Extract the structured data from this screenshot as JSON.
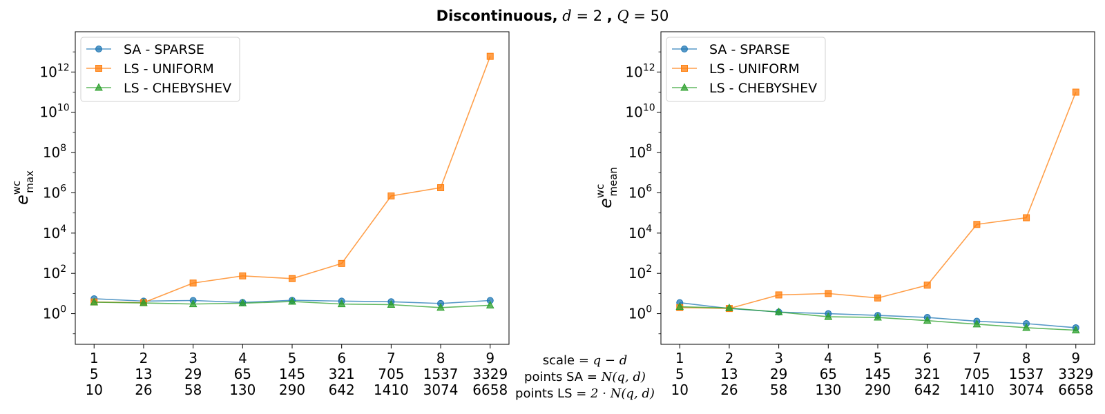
{
  "figure": {
    "title_parts": {
      "bold": "Discontinuous,",
      "d_var": "d",
      "d_eq": " = 2",
      "comma": ",",
      "q_var": "Q",
      "q_eq": " = 50"
    },
    "middle_labels": {
      "scale": {
        "prefix": "scale",
        "eq": " = ",
        "expr": "q − d"
      },
      "points_sa": {
        "prefix": "points SA",
        "eq": " = ",
        "expr": "N(q, d)"
      },
      "points_ls": {
        "prefix": "points LS",
        "eq": " = ",
        "expr": "2 · N(q, d)"
      }
    }
  },
  "chart_data": [
    {
      "type": "line",
      "ylabel": {
        "base": "e",
        "sup": "wc",
        "sub": "max"
      },
      "yscale": "log",
      "ylim": [
        0.03,
        100000000000000.0
      ],
      "yticks": [
        {
          "value": 1,
          "base": "10",
          "exp": "0"
        },
        {
          "value": 100,
          "base": "10",
          "exp": "2"
        },
        {
          "value": 10000,
          "base": "10",
          "exp": "4"
        },
        {
          "value": 1000000,
          "base": "10",
          "exp": "6"
        },
        {
          "value": 100000000,
          "base": "10",
          "exp": "8"
        },
        {
          "value": 10000000000,
          "base": "10",
          "exp": "10"
        },
        {
          "value": 1000000000000,
          "base": "10",
          "exp": "12"
        }
      ],
      "x": [
        1,
        2,
        3,
        4,
        5,
        6,
        7,
        8,
        9
      ],
      "xlim": [
        0.62,
        9.38
      ],
      "xticklabels_row2": [
        "5",
        "13",
        "29",
        "65",
        "145",
        "321",
        "705",
        "1537",
        "3329"
      ],
      "xticklabels_row3": [
        "10",
        "26",
        "58",
        "130",
        "290",
        "642",
        "1410",
        "3074",
        "6658"
      ],
      "legend_position": "upper-left",
      "grid": false,
      "series": [
        {
          "name": "SA - SPARSE",
          "marker": "circle",
          "color": "#1f77b4",
          "values": [
            5.5,
            4.2,
            4.5,
            3.6,
            4.6,
            4.2,
            3.9,
            3.2,
            4.5
          ]
        },
        {
          "name": "LS - UNIFORM",
          "marker": "square",
          "color": "#ff7f0e",
          "values": [
            3.8,
            3.5,
            33,
            75,
            55,
            310,
            700000,
            1800000,
            6000000000000
          ]
        },
        {
          "name": "LS - CHEBYSHEV",
          "marker": "triangle",
          "color": "#2ca02c",
          "values": [
            3.7,
            3.4,
            3.0,
            3.3,
            4.0,
            3.0,
            2.8,
            2.0,
            2.6
          ]
        }
      ]
    },
    {
      "type": "line",
      "ylabel": {
        "base": "e",
        "sup": "wc",
        "sub": "mean"
      },
      "yscale": "log",
      "ylim": [
        0.03,
        100000000000000.0
      ],
      "yticks": [
        {
          "value": 1,
          "base": "10",
          "exp": "0"
        },
        {
          "value": 100,
          "base": "10",
          "exp": "2"
        },
        {
          "value": 10000,
          "base": "10",
          "exp": "4"
        },
        {
          "value": 1000000,
          "base": "10",
          "exp": "6"
        },
        {
          "value": 100000000,
          "base": "10",
          "exp": "8"
        },
        {
          "value": 10000000000,
          "base": "10",
          "exp": "10"
        },
        {
          "value": 1000000000000,
          "base": "10",
          "exp": "12"
        }
      ],
      "x": [
        1,
        2,
        3,
        4,
        5,
        6,
        7,
        8,
        9
      ],
      "xlim": [
        0.62,
        9.38
      ],
      "xticklabels_row2": [
        "5",
        "13",
        "29",
        "65",
        "145",
        "321",
        "705",
        "1537",
        "3329"
      ],
      "xticklabels_row3": [
        "10",
        "26",
        "58",
        "130",
        "290",
        "642",
        "1410",
        "3074",
        "6658"
      ],
      "legend_position": "upper-left",
      "grid": false,
      "series": [
        {
          "name": "SA - SPARSE",
          "marker": "circle",
          "color": "#1f77b4",
          "values": [
            3.5,
            1.8,
            1.2,
            1.0,
            0.82,
            0.65,
            0.42,
            0.32,
            0.2
          ]
        },
        {
          "name": "LS - UNIFORM",
          "marker": "square",
          "color": "#ff7f0e",
          "values": [
            2.0,
            1.8,
            8.5,
            10,
            6,
            26,
            27000,
            58000,
            100000000000
          ]
        },
        {
          "name": "LS - CHEBYSHEV",
          "marker": "triangle",
          "color": "#2ca02c",
          "values": [
            2.2,
            1.9,
            1.2,
            0.7,
            0.65,
            0.45,
            0.3,
            0.2,
            0.15
          ]
        }
      ]
    }
  ]
}
